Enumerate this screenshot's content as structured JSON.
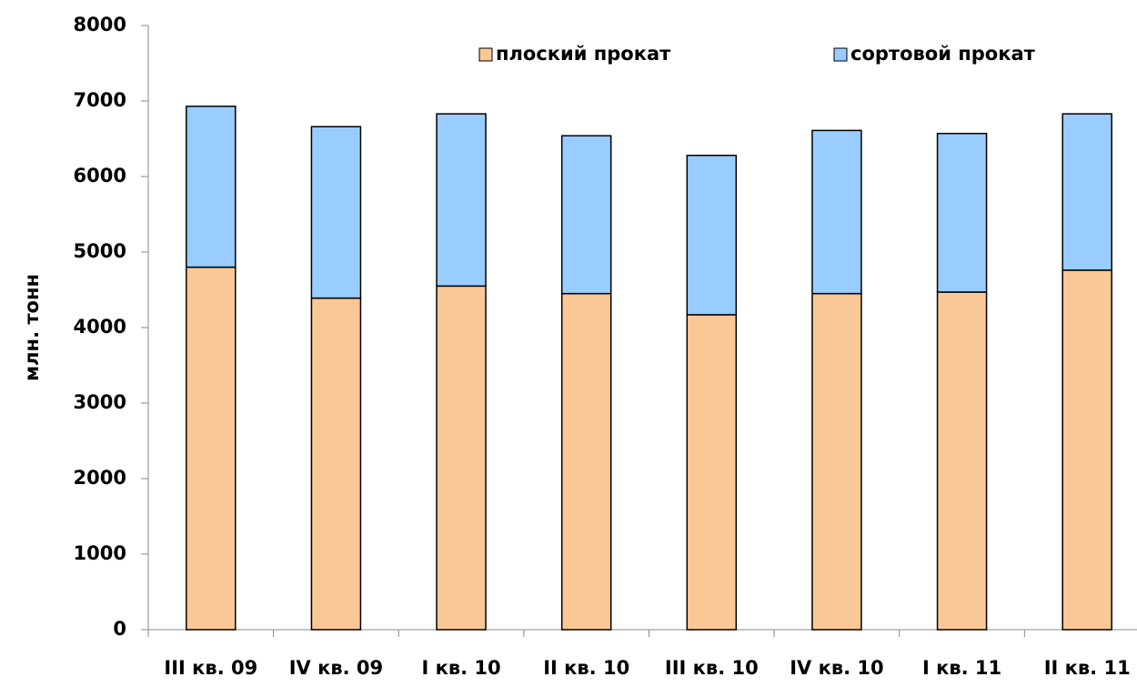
{
  "chart_data": {
    "type": "stacked_bar",
    "y_label": "млн. тонн",
    "categories": [
      "III кв. 09",
      "IV кв. 09",
      "I кв. 10",
      "II кв. 10",
      "III кв. 10",
      "IV кв. 10",
      "I кв. 11",
      "II кв. 11"
    ],
    "series": [
      {
        "name": "плоский прокат",
        "color": "#fac896",
        "values": [
          4800,
          4390,
          4550,
          4450,
          4170,
          4450,
          4470,
          4760
        ]
      },
      {
        "name": "сортовой прокат",
        "color": "#99ccff",
        "values": [
          2130,
          2270,
          2280,
          2090,
          2110,
          2160,
          2100,
          2070
        ]
      }
    ],
    "ylim": [
      0,
      8000
    ],
    "yticks": [
      0,
      1000,
      2000,
      3000,
      4000,
      5000,
      6000,
      7000,
      8000
    ],
    "grid": false,
    "legend": "top-right"
  }
}
